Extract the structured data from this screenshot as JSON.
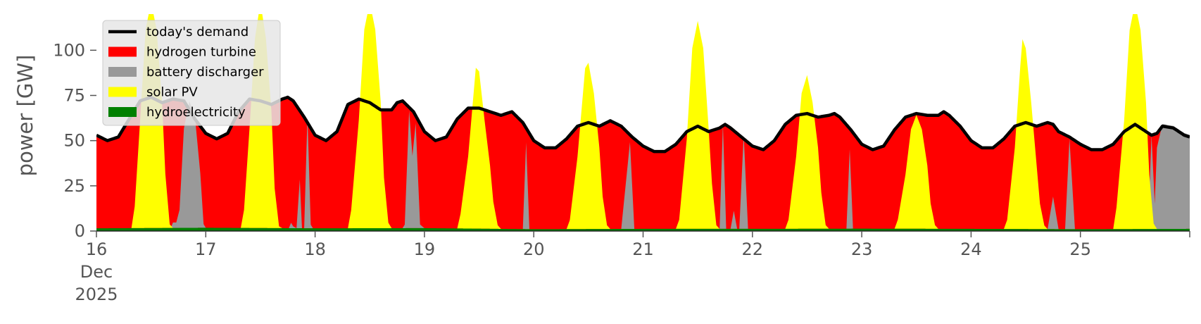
{
  "chart_data": {
    "type": "area",
    "ylabel": "power [GW]",
    "ylim": [
      0,
      120
    ],
    "yticks": [
      0,
      25,
      50,
      75,
      100
    ],
    "xlim": [
      0,
      10
    ],
    "x_tick_labels": [
      {
        "x": 0,
        "lines": [
          "16",
          "Dec",
          "2025"
        ]
      },
      {
        "x": 1,
        "lines": [
          "17"
        ]
      },
      {
        "x": 2,
        "lines": [
          "18"
        ]
      },
      {
        "x": 3,
        "lines": [
          "19"
        ]
      },
      {
        "x": 4,
        "lines": [
          "20"
        ]
      },
      {
        "x": 5,
        "lines": [
          "21"
        ]
      },
      {
        "x": 6,
        "lines": [
          "22"
        ]
      },
      {
        "x": 7,
        "lines": [
          "23"
        ]
      },
      {
        "x": 8,
        "lines": [
          "24"
        ]
      },
      {
        "x": 9,
        "lines": [
          "25"
        ]
      }
    ],
    "legend": {
      "placement": "top-left",
      "entries": [
        {
          "label": "today's demand",
          "color": "#000000",
          "kind": "line"
        },
        {
          "label": "hydrogen turbine",
          "color": "#ff0000",
          "kind": "patch"
        },
        {
          "label": "battery discharger",
          "color": "#999999",
          "kind": "patch"
        },
        {
          "label": "solar PV",
          "color": "#ffff00",
          "kind": "patch"
        },
        {
          "label": "hydroelectricity",
          "color": "#008000",
          "kind": "patch"
        }
      ]
    },
    "background_color": "#ffffff",
    "series": {
      "hydroelectricity": {
        "color": "#008000",
        "points": [
          [
            0,
            1.5
          ],
          [
            1,
            1.8
          ],
          [
            2,
            1.5
          ],
          [
            3,
            1.6
          ],
          [
            4,
            1.0
          ],
          [
            5,
            1.2
          ],
          [
            6,
            1.2
          ],
          [
            7,
            1.3
          ],
          [
            8,
            1.2
          ],
          [
            9,
            1.0
          ],
          [
            10,
            1.2
          ]
        ]
      },
      "demand": {
        "color": "#000000",
        "points": [
          [
            0.0,
            53
          ],
          [
            0.1,
            50
          ],
          [
            0.2,
            52
          ],
          [
            0.3,
            62
          ],
          [
            0.4,
            72
          ],
          [
            0.5,
            74
          ],
          [
            0.6,
            71
          ],
          [
            0.7,
            73
          ],
          [
            0.8,
            72
          ],
          [
            0.9,
            62
          ],
          [
            1.0,
            54
          ],
          [
            1.1,
            51
          ],
          [
            1.2,
            54
          ],
          [
            1.3,
            66
          ],
          [
            1.4,
            73
          ],
          [
            1.5,
            72
          ],
          [
            1.6,
            70
          ],
          [
            1.7,
            73
          ],
          [
            1.75,
            74
          ],
          [
            1.8,
            72
          ],
          [
            1.9,
            63
          ],
          [
            2.0,
            53
          ],
          [
            2.1,
            50
          ],
          [
            2.2,
            55
          ],
          [
            2.3,
            70
          ],
          [
            2.4,
            73
          ],
          [
            2.5,
            71
          ],
          [
            2.6,
            67
          ],
          [
            2.7,
            67
          ],
          [
            2.75,
            71
          ],
          [
            2.8,
            72
          ],
          [
            2.9,
            66
          ],
          [
            3.0,
            55
          ],
          [
            3.1,
            50
          ],
          [
            3.2,
            52
          ],
          [
            3.3,
            62
          ],
          [
            3.4,
            68
          ],
          [
            3.5,
            68
          ],
          [
            3.6,
            66
          ],
          [
            3.7,
            64
          ],
          [
            3.8,
            66
          ],
          [
            3.9,
            60
          ],
          [
            4.0,
            50
          ],
          [
            4.1,
            46
          ],
          [
            4.2,
            46
          ],
          [
            4.3,
            51
          ],
          [
            4.4,
            58
          ],
          [
            4.5,
            60
          ],
          [
            4.6,
            58
          ],
          [
            4.7,
            61
          ],
          [
            4.8,
            58
          ],
          [
            4.9,
            52
          ],
          [
            5.0,
            47
          ],
          [
            5.1,
            44
          ],
          [
            5.2,
            44
          ],
          [
            5.3,
            48
          ],
          [
            5.4,
            55
          ],
          [
            5.5,
            58
          ],
          [
            5.6,
            55
          ],
          [
            5.7,
            57
          ],
          [
            5.75,
            59
          ],
          [
            5.8,
            57
          ],
          [
            5.9,
            52
          ],
          [
            6.0,
            47
          ],
          [
            6.1,
            45
          ],
          [
            6.2,
            50
          ],
          [
            6.3,
            59
          ],
          [
            6.4,
            64
          ],
          [
            6.5,
            65
          ],
          [
            6.6,
            63
          ],
          [
            6.7,
            64
          ],
          [
            6.75,
            65
          ],
          [
            6.8,
            63
          ],
          [
            6.9,
            56
          ],
          [
            7.0,
            48
          ],
          [
            7.1,
            45
          ],
          [
            7.2,
            47
          ],
          [
            7.3,
            56
          ],
          [
            7.4,
            63
          ],
          [
            7.5,
            65
          ],
          [
            7.6,
            64
          ],
          [
            7.7,
            64
          ],
          [
            7.75,
            66
          ],
          [
            7.8,
            64
          ],
          [
            7.9,
            58
          ],
          [
            8.0,
            50
          ],
          [
            8.1,
            46
          ],
          [
            8.2,
            46
          ],
          [
            8.3,
            51
          ],
          [
            8.4,
            58
          ],
          [
            8.5,
            60
          ],
          [
            8.6,
            58
          ],
          [
            8.7,
            60
          ],
          [
            8.75,
            59
          ],
          [
            8.8,
            55
          ],
          [
            8.9,
            52
          ],
          [
            9.0,
            48
          ],
          [
            9.1,
            45
          ],
          [
            9.2,
            45
          ],
          [
            9.3,
            48
          ],
          [
            9.4,
            55
          ],
          [
            9.5,
            59
          ],
          [
            9.6,
            55
          ],
          [
            9.65,
            53
          ],
          [
            9.7,
            54
          ],
          [
            9.75,
            58
          ],
          [
            9.85,
            57
          ],
          [
            9.95,
            53
          ],
          [
            10.0,
            52
          ]
        ]
      },
      "solar": {
        "color": "#ffff00",
        "points": [
          [
            0.0,
            0
          ],
          [
            0.32,
            0
          ],
          [
            0.35,
            12
          ],
          [
            0.4,
            60
          ],
          [
            0.45,
            110
          ],
          [
            0.5,
            125
          ],
          [
            0.55,
            110
          ],
          [
            0.6,
            70
          ],
          [
            0.63,
            30
          ],
          [
            0.67,
            2
          ],
          [
            0.7,
            0
          ],
          [
            1.0,
            0
          ],
          [
            1.32,
            0
          ],
          [
            1.35,
            10
          ],
          [
            1.4,
            55
          ],
          [
            1.45,
            105
          ],
          [
            1.5,
            125
          ],
          [
            1.55,
            105
          ],
          [
            1.6,
            65
          ],
          [
            1.63,
            22
          ],
          [
            1.67,
            1
          ],
          [
            1.7,
            0
          ],
          [
            2.0,
            0
          ],
          [
            2.3,
            0
          ],
          [
            2.33,
            10
          ],
          [
            2.4,
            60
          ],
          [
            2.45,
            110
          ],
          [
            2.5,
            125
          ],
          [
            2.55,
            110
          ],
          [
            2.6,
            70
          ],
          [
            2.63,
            28
          ],
          [
            2.67,
            3
          ],
          [
            2.7,
            0
          ],
          [
            3.0,
            0
          ],
          [
            3.3,
            0
          ],
          [
            3.33,
            8
          ],
          [
            3.4,
            40
          ],
          [
            3.45,
            75
          ],
          [
            3.47,
            89
          ],
          [
            3.5,
            87
          ],
          [
            3.55,
            60
          ],
          [
            3.6,
            35
          ],
          [
            3.63,
            15
          ],
          [
            3.67,
            2
          ],
          [
            3.7,
            0
          ],
          [
            4.0,
            0
          ],
          [
            4.3,
            0
          ],
          [
            4.33,
            5
          ],
          [
            4.4,
            40
          ],
          [
            4.45,
            75
          ],
          [
            4.47,
            89
          ],
          [
            4.5,
            92
          ],
          [
            4.55,
            75
          ],
          [
            4.6,
            45
          ],
          [
            4.63,
            18
          ],
          [
            4.67,
            2
          ],
          [
            4.7,
            0
          ],
          [
            5.0,
            0
          ],
          [
            5.3,
            0
          ],
          [
            5.33,
            5
          ],
          [
            5.4,
            50
          ],
          [
            5.45,
            100
          ],
          [
            5.5,
            115
          ],
          [
            5.55,
            100
          ],
          [
            5.6,
            55
          ],
          [
            5.63,
            25
          ],
          [
            5.67,
            2
          ],
          [
            5.7,
            0
          ],
          [
            6.0,
            0
          ],
          [
            6.3,
            0
          ],
          [
            6.33,
            5
          ],
          [
            6.4,
            40
          ],
          [
            6.45,
            75
          ],
          [
            6.5,
            85
          ],
          [
            6.55,
            70
          ],
          [
            6.6,
            45
          ],
          [
            6.63,
            20
          ],
          [
            6.67,
            2
          ],
          [
            6.7,
            0
          ],
          [
            7.0,
            0
          ],
          [
            7.3,
            0
          ],
          [
            7.33,
            5
          ],
          [
            7.4,
            30
          ],
          [
            7.45,
            55
          ],
          [
            7.5,
            63
          ],
          [
            7.55,
            55
          ],
          [
            7.6,
            35
          ],
          [
            7.63,
            14
          ],
          [
            7.67,
            2
          ],
          [
            7.7,
            0
          ],
          [
            8.0,
            0
          ],
          [
            8.3,
            0
          ],
          [
            8.33,
            5
          ],
          [
            8.4,
            45
          ],
          [
            8.45,
            90
          ],
          [
            8.47,
            105
          ],
          [
            8.5,
            100
          ],
          [
            8.55,
            70
          ],
          [
            8.6,
            35
          ],
          [
            8.63,
            14
          ],
          [
            8.67,
            2
          ],
          [
            8.7,
            0
          ],
          [
            9.0,
            0
          ],
          [
            9.3,
            0
          ],
          [
            9.33,
            12
          ],
          [
            9.4,
            60
          ],
          [
            9.45,
            110
          ],
          [
            9.5,
            125
          ],
          [
            9.55,
            110
          ],
          [
            9.6,
            70
          ],
          [
            9.63,
            30
          ],
          [
            9.67,
            3
          ],
          [
            9.7,
            0
          ],
          [
            10.0,
            0
          ]
        ]
      },
      "battery": {
        "color": "#999999",
        "points": [
          [
            0.0,
            0
          ],
          [
            0.68,
            0
          ],
          [
            0.7,
            3
          ],
          [
            0.73,
            3
          ],
          [
            0.76,
            10
          ],
          [
            0.8,
            55
          ],
          [
            0.85,
            70
          ],
          [
            0.9,
            62
          ],
          [
            0.95,
            30
          ],
          [
            0.98,
            2
          ],
          [
            1.0,
            0
          ],
          [
            1.76,
            0
          ],
          [
            1.78,
            3
          ],
          [
            1.8,
            1
          ],
          [
            1.83,
            0
          ],
          [
            1.86,
            27
          ],
          [
            1.88,
            0
          ],
          [
            1.9,
            0
          ],
          [
            1.93,
            62
          ],
          [
            1.96,
            2
          ],
          [
            1.98,
            0
          ],
          [
            2.8,
            0
          ],
          [
            2.82,
            2
          ],
          [
            2.86,
            65
          ],
          [
            2.89,
            40
          ],
          [
            2.92,
            58
          ],
          [
            2.96,
            2
          ],
          [
            3.0,
            0
          ],
          [
            3.9,
            0
          ],
          [
            3.93,
            48
          ],
          [
            3.96,
            0
          ],
          [
            4.8,
            0
          ],
          [
            4.85,
            30
          ],
          [
            4.88,
            48
          ],
          [
            4.92,
            0
          ],
          [
            5.7,
            0
          ],
          [
            5.73,
            58
          ],
          [
            5.76,
            0
          ],
          [
            5.8,
            0
          ],
          [
            5.83,
            10
          ],
          [
            5.86,
            0
          ],
          [
            5.88,
            0
          ],
          [
            5.92,
            52
          ],
          [
            5.96,
            0
          ],
          [
            6.86,
            0
          ],
          [
            6.89,
            44
          ],
          [
            6.92,
            0
          ],
          [
            8.7,
            0
          ],
          [
            8.75,
            18
          ],
          [
            8.8,
            0
          ],
          [
            8.86,
            0
          ],
          [
            8.9,
            50
          ],
          [
            8.95,
            0
          ],
          [
            9.62,
            0
          ],
          [
            9.65,
            52
          ],
          [
            9.68,
            14
          ],
          [
            9.7,
            45
          ],
          [
            9.75,
            58
          ],
          [
            9.85,
            57
          ],
          [
            9.95,
            53
          ],
          [
            10.0,
            52
          ]
        ]
      }
    }
  }
}
